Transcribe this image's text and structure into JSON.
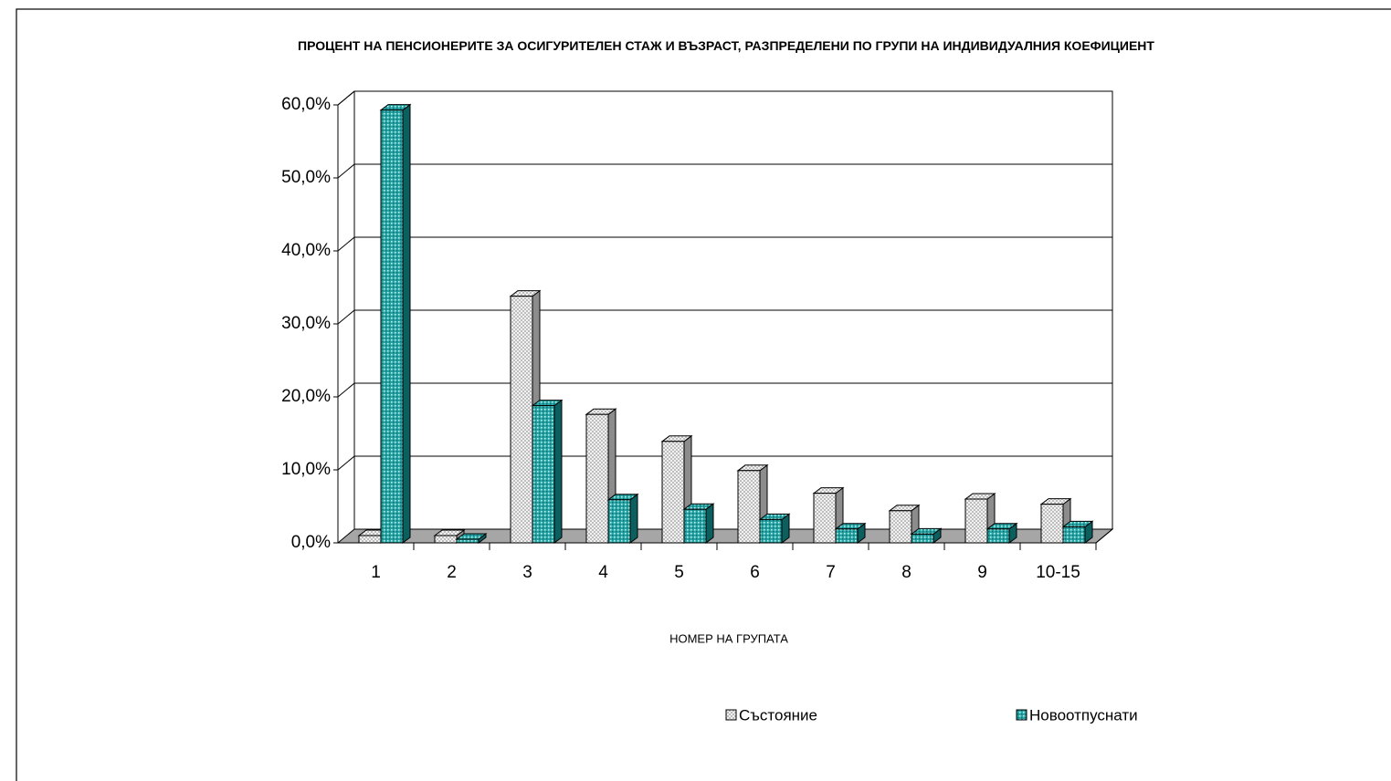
{
  "chart_data": {
    "type": "bar3d",
    "title": "ПРОЦЕНТ НА ПЕНСИОНЕРИТЕ ЗА ОСИГУРИТЕЛЕН СТАЖ И ВЪЗРАСТ, РАЗПРЕДЕЛЕНИ ПО ГРУПИ НА ИНДИВИДУАЛНИЯ КОЕФИЦИЕНТ",
    "x_label": "НОМЕР НА ГРУПАТА",
    "categories": [
      "1",
      "2",
      "3",
      "4",
      "5",
      "6",
      "7",
      "8",
      "9",
      "10-15"
    ],
    "series": [
      {
        "name": "Състояние",
        "color": "#e6e6e6",
        "values": [
          1.0,
          1.0,
          33.8,
          17.6,
          13.9,
          9.9,
          6.8,
          4.4,
          6.0,
          5.3
        ]
      },
      {
        "name": "Новоотпуснати",
        "color": "#2aa6a6",
        "values": [
          59.3,
          0.5,
          18.8,
          5.9,
          4.6,
          3.2,
          1.9,
          1.2,
          1.9,
          2.2
        ]
      }
    ],
    "ylim": [
      0,
      60
    ],
    "yticks": [
      {
        "value": 0,
        "label": "0,0%"
      },
      {
        "value": 10,
        "label": "10,0%"
      },
      {
        "value": 20,
        "label": "20,0%"
      },
      {
        "value": 30,
        "label": "30,0%"
      },
      {
        "value": 40,
        "label": "40,0%"
      },
      {
        "value": 50,
        "label": "50,0%"
      },
      {
        "value": 60,
        "label": "60,0%"
      }
    ],
    "grid": true,
    "legend": "bottom-right"
  }
}
